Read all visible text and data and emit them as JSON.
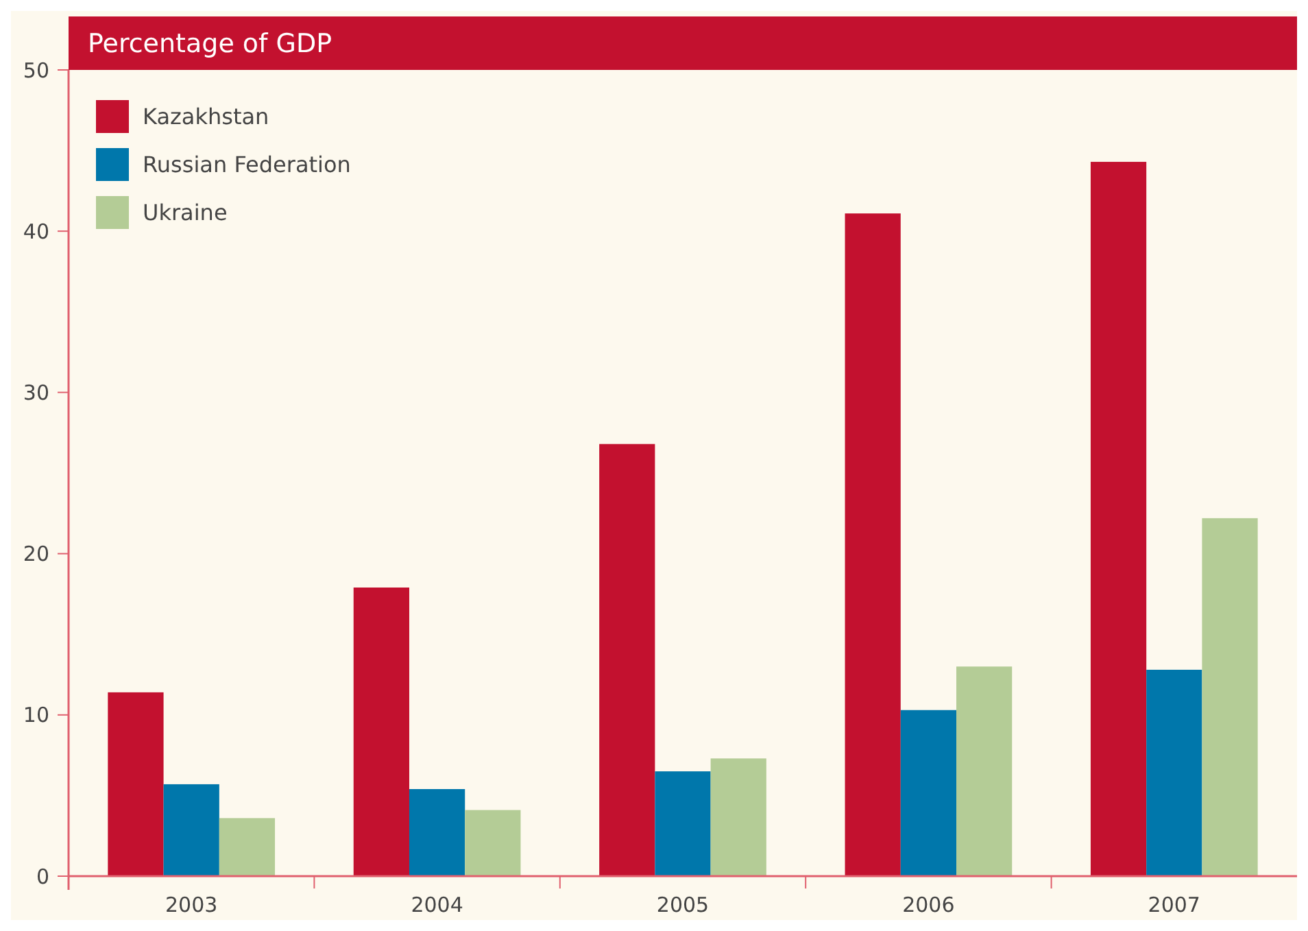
{
  "chart_data": {
    "type": "bar",
    "title": "Percentage of GDP",
    "categories": [
      "2003",
      "2004",
      "2005",
      "2006",
      "2007"
    ],
    "series": [
      {
        "name": "Kazakhstan",
        "color": "#c3112f",
        "values": [
          11.4,
          17.9,
          26.8,
          41.1,
          44.3
        ]
      },
      {
        "name": "Russian Federation",
        "color": "#0077ab",
        "values": [
          5.7,
          5.4,
          6.5,
          10.3,
          12.8
        ]
      },
      {
        "name": "Ukraine",
        "color": "#b4cc96",
        "values": [
          3.6,
          4.1,
          7.3,
          13.0,
          22.2
        ]
      }
    ],
    "ylim": [
      0,
      50
    ],
    "yticks": [
      0,
      10,
      20,
      30,
      40,
      50
    ],
    "grid": false,
    "legend": "top left"
  }
}
